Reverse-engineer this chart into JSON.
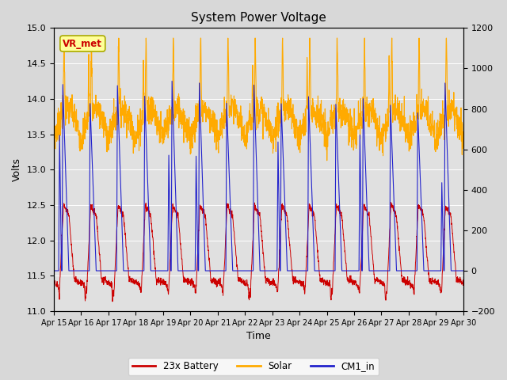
{
  "title": "System Power Voltage",
  "xlabel": "Time",
  "ylabel": "Volts",
  "ylim_left": [
    11.0,
    15.0
  ],
  "ylim_right": [
    -200,
    1200
  ],
  "yticks_left": [
    11.0,
    11.5,
    12.0,
    12.5,
    13.0,
    13.5,
    14.0,
    14.5,
    15.0
  ],
  "yticks_right": [
    -200,
    0,
    200,
    400,
    600,
    800,
    1000,
    1200
  ],
  "xtick_labels": [
    "Apr 15",
    "Apr 16",
    "Apr 17",
    "Apr 18",
    "Apr 19",
    "Apr 20",
    "Apr 21",
    "Apr 22",
    "Apr 23",
    "Apr 24",
    "Apr 25",
    "Apr 26",
    "Apr 27",
    "Apr 28",
    "Apr 29",
    "Apr 30"
  ],
  "legend_labels": [
    "23x Battery",
    "Solar",
    "CM1_in"
  ],
  "line_colors": {
    "battery": "#cc0000",
    "solar": "#ffaa00",
    "cm1": "#2222cc"
  },
  "bg_color": "#d8d8d8",
  "vr_met_box_color": "#ffff99",
  "vr_met_text_color": "#cc0000",
  "vr_met_edge_color": "#aaaa00"
}
